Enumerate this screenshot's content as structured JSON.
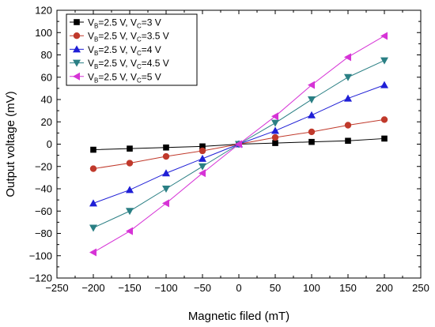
{
  "chart_data": {
    "type": "line",
    "xlabel": "Magnetic filed (mT)",
    "ylabel": "Output voltage (mV)",
    "xlim": [
      -250,
      250
    ],
    "ylim": [
      -120,
      120
    ],
    "xticks": [
      -250,
      -200,
      -150,
      -100,
      -50,
      0,
      50,
      100,
      150,
      200,
      250
    ],
    "yticks": [
      -120,
      -100,
      -80,
      -60,
      -40,
      -20,
      0,
      20,
      40,
      60,
      80,
      100,
      120
    ],
    "grid": false,
    "legend_position": "top-left",
    "x": [
      -200,
      -150,
      -100,
      -50,
      0,
      50,
      100,
      150,
      200
    ],
    "series": [
      {
        "name": "VB=2.5 V, VC=3 V",
        "label_parts": [
          "V",
          "B",
          "=2.5 V, V",
          "C",
          "=3 V"
        ],
        "color": "#000000",
        "marker": "square",
        "values": [
          -5,
          -4,
          -3,
          -2,
          0,
          1,
          2,
          3,
          5
        ]
      },
      {
        "name": "VB=2.5 V, VC=3.5 V",
        "label_parts": [
          "V",
          "B",
          "=2.5 V, V",
          "C",
          "=3.5 V"
        ],
        "color": "#c0392b",
        "marker": "circle",
        "values": [
          -22,
          -17,
          -11,
          -6,
          0,
          6,
          11,
          17,
          22
        ]
      },
      {
        "name": "VB=2.5 V, VC=4 V",
        "label_parts": [
          "V",
          "B",
          "=2.5 V, V",
          "C",
          "=4 V"
        ],
        "color": "#1f1fd6",
        "marker": "triangle-up",
        "values": [
          -53,
          -41,
          -26,
          -13,
          0,
          12,
          26,
          41,
          53
        ]
      },
      {
        "name": "VB=2.5 V, VC=4.5 V",
        "label_parts": [
          "V",
          "B",
          "=2.5 V, V",
          "C",
          "=4.5 V"
        ],
        "color": "#2a7f84",
        "marker": "triangle-down",
        "values": [
          -75,
          -60,
          -40,
          -20,
          0,
          19,
          40,
          60,
          75
        ]
      },
      {
        "name": "VB=2.5 V, VC=5 V",
        "label_parts": [
          "V",
          "B",
          "=2.5 V, V",
          "C",
          "=5 V"
        ],
        "color": "#d633d6",
        "marker": "triangle-left",
        "values": [
          -97,
          -78,
          -53,
          -26,
          0,
          25,
          53,
          78,
          97
        ]
      }
    ]
  }
}
